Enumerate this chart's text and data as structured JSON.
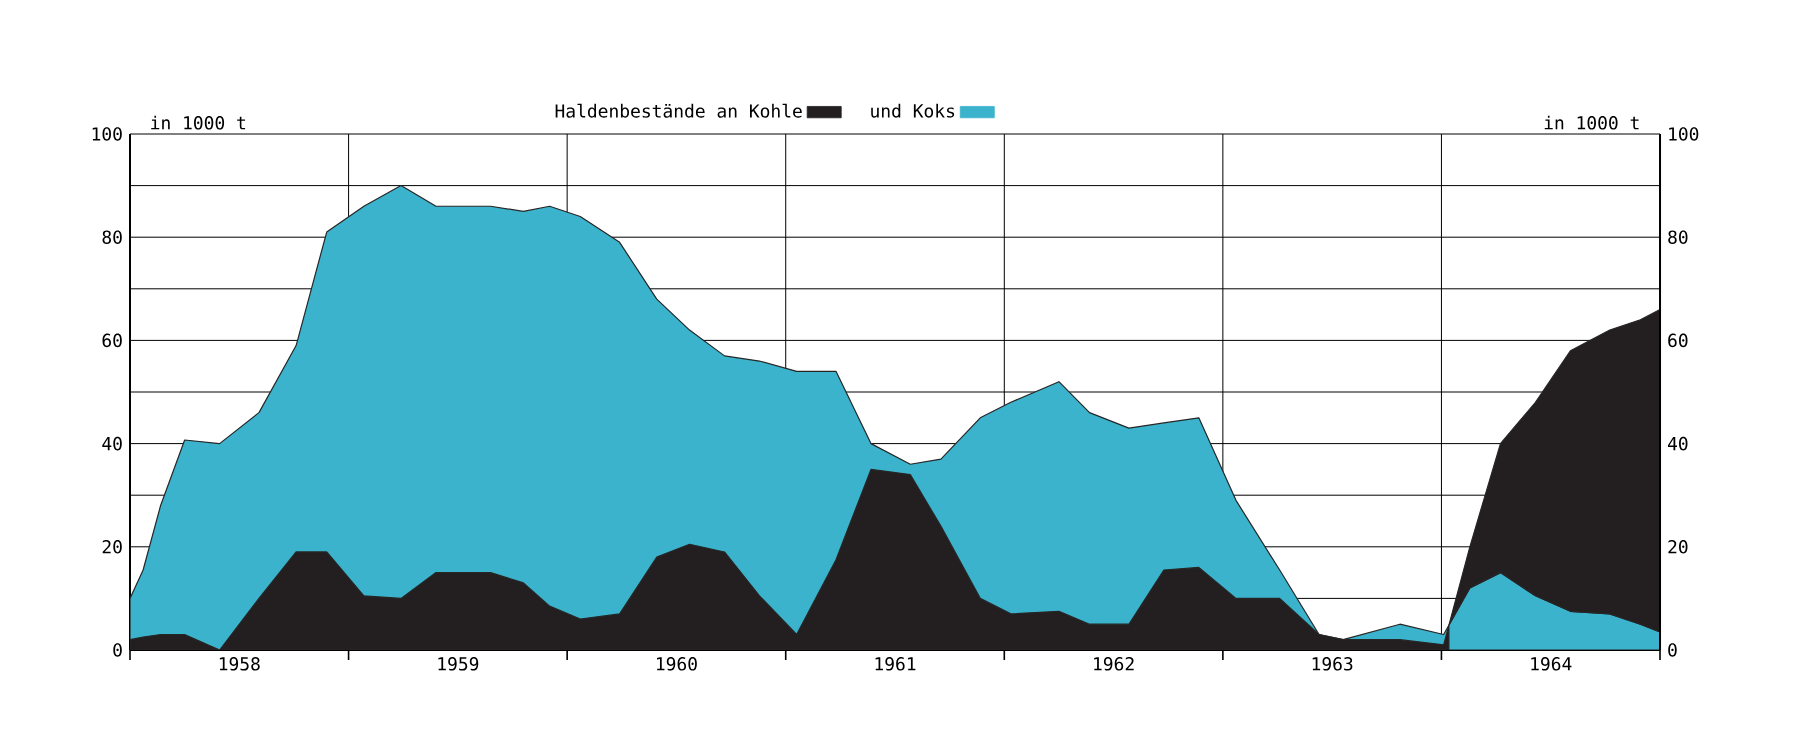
{
  "chart_data": {
    "type": "area",
    "x": [
      1958.0,
      1958.06,
      1958.14,
      1958.25,
      1958.41,
      1958.59,
      1958.76,
      1958.9,
      1959.07,
      1959.24,
      1959.4,
      1959.65,
      1959.8,
      1959.92,
      1960.06,
      1960.24,
      1960.41,
      1960.56,
      1960.72,
      1960.88,
      1961.05,
      1961.23,
      1961.39,
      1961.57,
      1961.71,
      1961.89,
      1962.03,
      1962.25,
      1962.39,
      1962.57,
      1962.73,
      1962.89,
      1963.06,
      1963.26,
      1963.44,
      1963.55,
      1963.81,
      1964.01,
      1964.13,
      1964.27,
      1964.43,
      1964.59,
      1964.77,
      1964.91,
      1965.0
    ],
    "series": [
      {
        "name": "Haldenbestände an Kohle",
        "color": "#231f20",
        "values": [
          2,
          2.5,
          3,
          3,
          0,
          10,
          19,
          19,
          10.5,
          10,
          15,
          15,
          13,
          8.5,
          6,
          7,
          18,
          20.5,
          19,
          10.5,
          3,
          17.5,
          35,
          34,
          24,
          10,
          7,
          7.5,
          5,
          5,
          15.5,
          16,
          10,
          10,
          3,
          2,
          2,
          1,
          20,
          40,
          48,
          58,
          62,
          64,
          66
        ]
      },
      {
        "name": "und Koks",
        "color": "#3bb3cc",
        "values": [
          10,
          15.5,
          28,
          40.7,
          40,
          46,
          59,
          81,
          86,
          90,
          86,
          86,
          85,
          86,
          84,
          79,
          68,
          62,
          57,
          56,
          54,
          54,
          40,
          36,
          37,
          45,
          48,
          52,
          46,
          43,
          44,
          45,
          29,
          15.5,
          3,
          2,
          5,
          3,
          12,
          15,
          10.5,
          7.5,
          7,
          5,
          3.5
        ]
      }
    ],
    "xlim": [
      1958,
      1965
    ],
    "xticks": [
      {
        "value": 1958,
        "label": null
      },
      {
        "value": 1958.5,
        "label": "1958"
      },
      {
        "value": 1959,
        "label": null
      },
      {
        "value": 1959.5,
        "label": "1959"
      },
      {
        "value": 1960,
        "label": null
      },
      {
        "value": 1960.5,
        "label": "1960"
      },
      {
        "value": 1961,
        "label": null
      },
      {
        "value": 1961.5,
        "label": "1961"
      },
      {
        "value": 1962,
        "label": null
      },
      {
        "value": 1962.5,
        "label": "1962"
      },
      {
        "value": 1963,
        "label": null
      },
      {
        "value": 1963.5,
        "label": "1963"
      },
      {
        "value": 1964,
        "label": null
      },
      {
        "value": 1964.5,
        "label": "1964"
      },
      {
        "value": 1965,
        "label": null
      }
    ],
    "ylim": [
      0,
      100
    ],
    "yticks": [
      0,
      {
        "value": 10,
        "label": null
      },
      20,
      {
        "value": 30,
        "label": null
      },
      40,
      {
        "value": 50,
        "label": null
      },
      60,
      {
        "value": 70,
        "label": null
      },
      80,
      {
        "value": 90,
        "label": null
      },
      100
    ],
    "y2lim": [
      0,
      100
    ],
    "y2ticks": [
      0,
      20,
      40,
      60,
      80,
      100
    ],
    "ylabel": "in 1000 t",
    "y2label": "in 1000 t",
    "grid": true,
    "legend": "top"
  }
}
